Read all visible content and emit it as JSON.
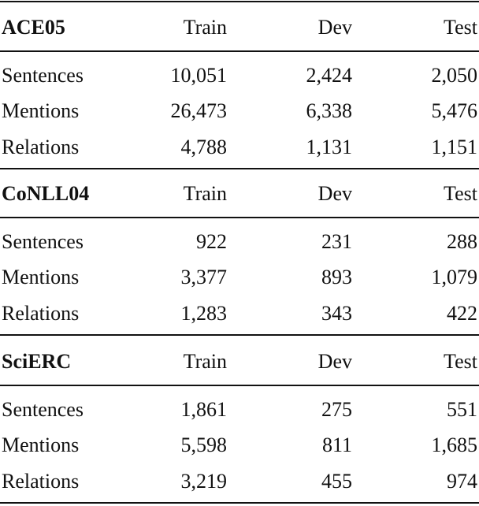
{
  "table": {
    "sections": [
      {
        "header": [
          "ACE05",
          "Train",
          "Dev",
          "Test"
        ],
        "rows": [
          [
            "Sentences",
            "10,051",
            "2,424",
            "2,050"
          ],
          [
            "Mentions",
            "26,473",
            "6,338",
            "5,476"
          ],
          [
            "Relations",
            "4,788",
            "1,131",
            "1,151"
          ]
        ]
      },
      {
        "header": [
          "CoNLL04",
          "Train",
          "Dev",
          "Test"
        ],
        "rows": [
          [
            "Sentences",
            "922",
            "231",
            "288"
          ],
          [
            "Mentions",
            "3,377",
            "893",
            "1,079"
          ],
          [
            "Relations",
            "1,283",
            "343",
            "422"
          ]
        ]
      },
      {
        "header": [
          "SciERC",
          "Train",
          "Dev",
          "Test"
        ],
        "rows": [
          [
            "Sentences",
            "1,861",
            "275",
            "551"
          ],
          [
            "Mentions",
            "5,598",
            "811",
            "1,685"
          ],
          [
            "Relations",
            "3,219",
            "455",
            "974"
          ]
        ]
      }
    ]
  }
}
